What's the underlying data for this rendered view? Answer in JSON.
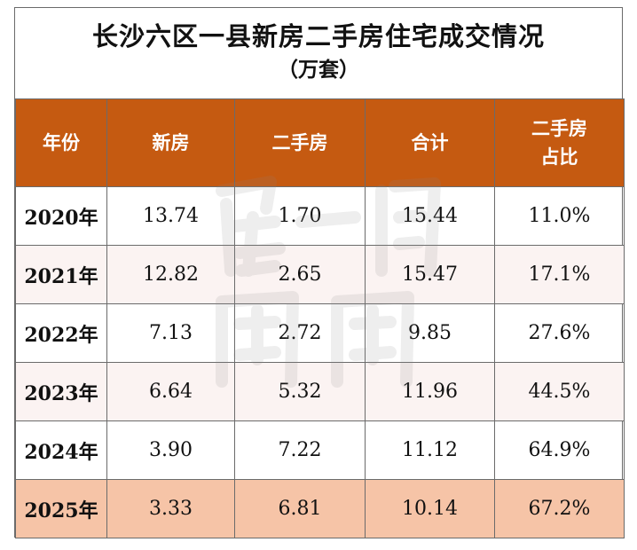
{
  "table": {
    "title": "长沙六区一县新房二手房住宅成交情况",
    "subtitle": "（万套）",
    "headers": [
      "年份",
      "新房",
      "二手房",
      "合计",
      "二手房\n占比"
    ],
    "header_lines": {
      "last_line1": "二手房",
      "last_line2": "占比"
    },
    "rows": [
      {
        "year": "2020年",
        "new": "13.74",
        "second": "1.70",
        "total": "15.44",
        "share": "11.0%"
      },
      {
        "year": "2021年",
        "new": "12.82",
        "second": "2.65",
        "total": "15.47",
        "share": "17.1%"
      },
      {
        "year": "2022年",
        "new": "7.13",
        "second": "2.72",
        "total": "9.85",
        "share": "27.6%"
      },
      {
        "year": "2023年",
        "new": "6.64",
        "second": "5.32",
        "total": "11.96",
        "share": "44.5%"
      },
      {
        "year": "2024年",
        "new": "3.90",
        "second": "7.22",
        "total": "11.12",
        "share": "64.9%"
      },
      {
        "year": "2025年",
        "new": "3.33",
        "second": "6.81",
        "total": "10.14",
        "share": "67.2%"
      }
    ]
  },
  "colors": {
    "header_bg": "#c55a11",
    "highlight_row_bg": "#f6c4a7",
    "stripe_bg": "#fbf3f2",
    "border": "#6b6b6b"
  },
  "watermark": {
    "text": "居一间周周"
  }
}
